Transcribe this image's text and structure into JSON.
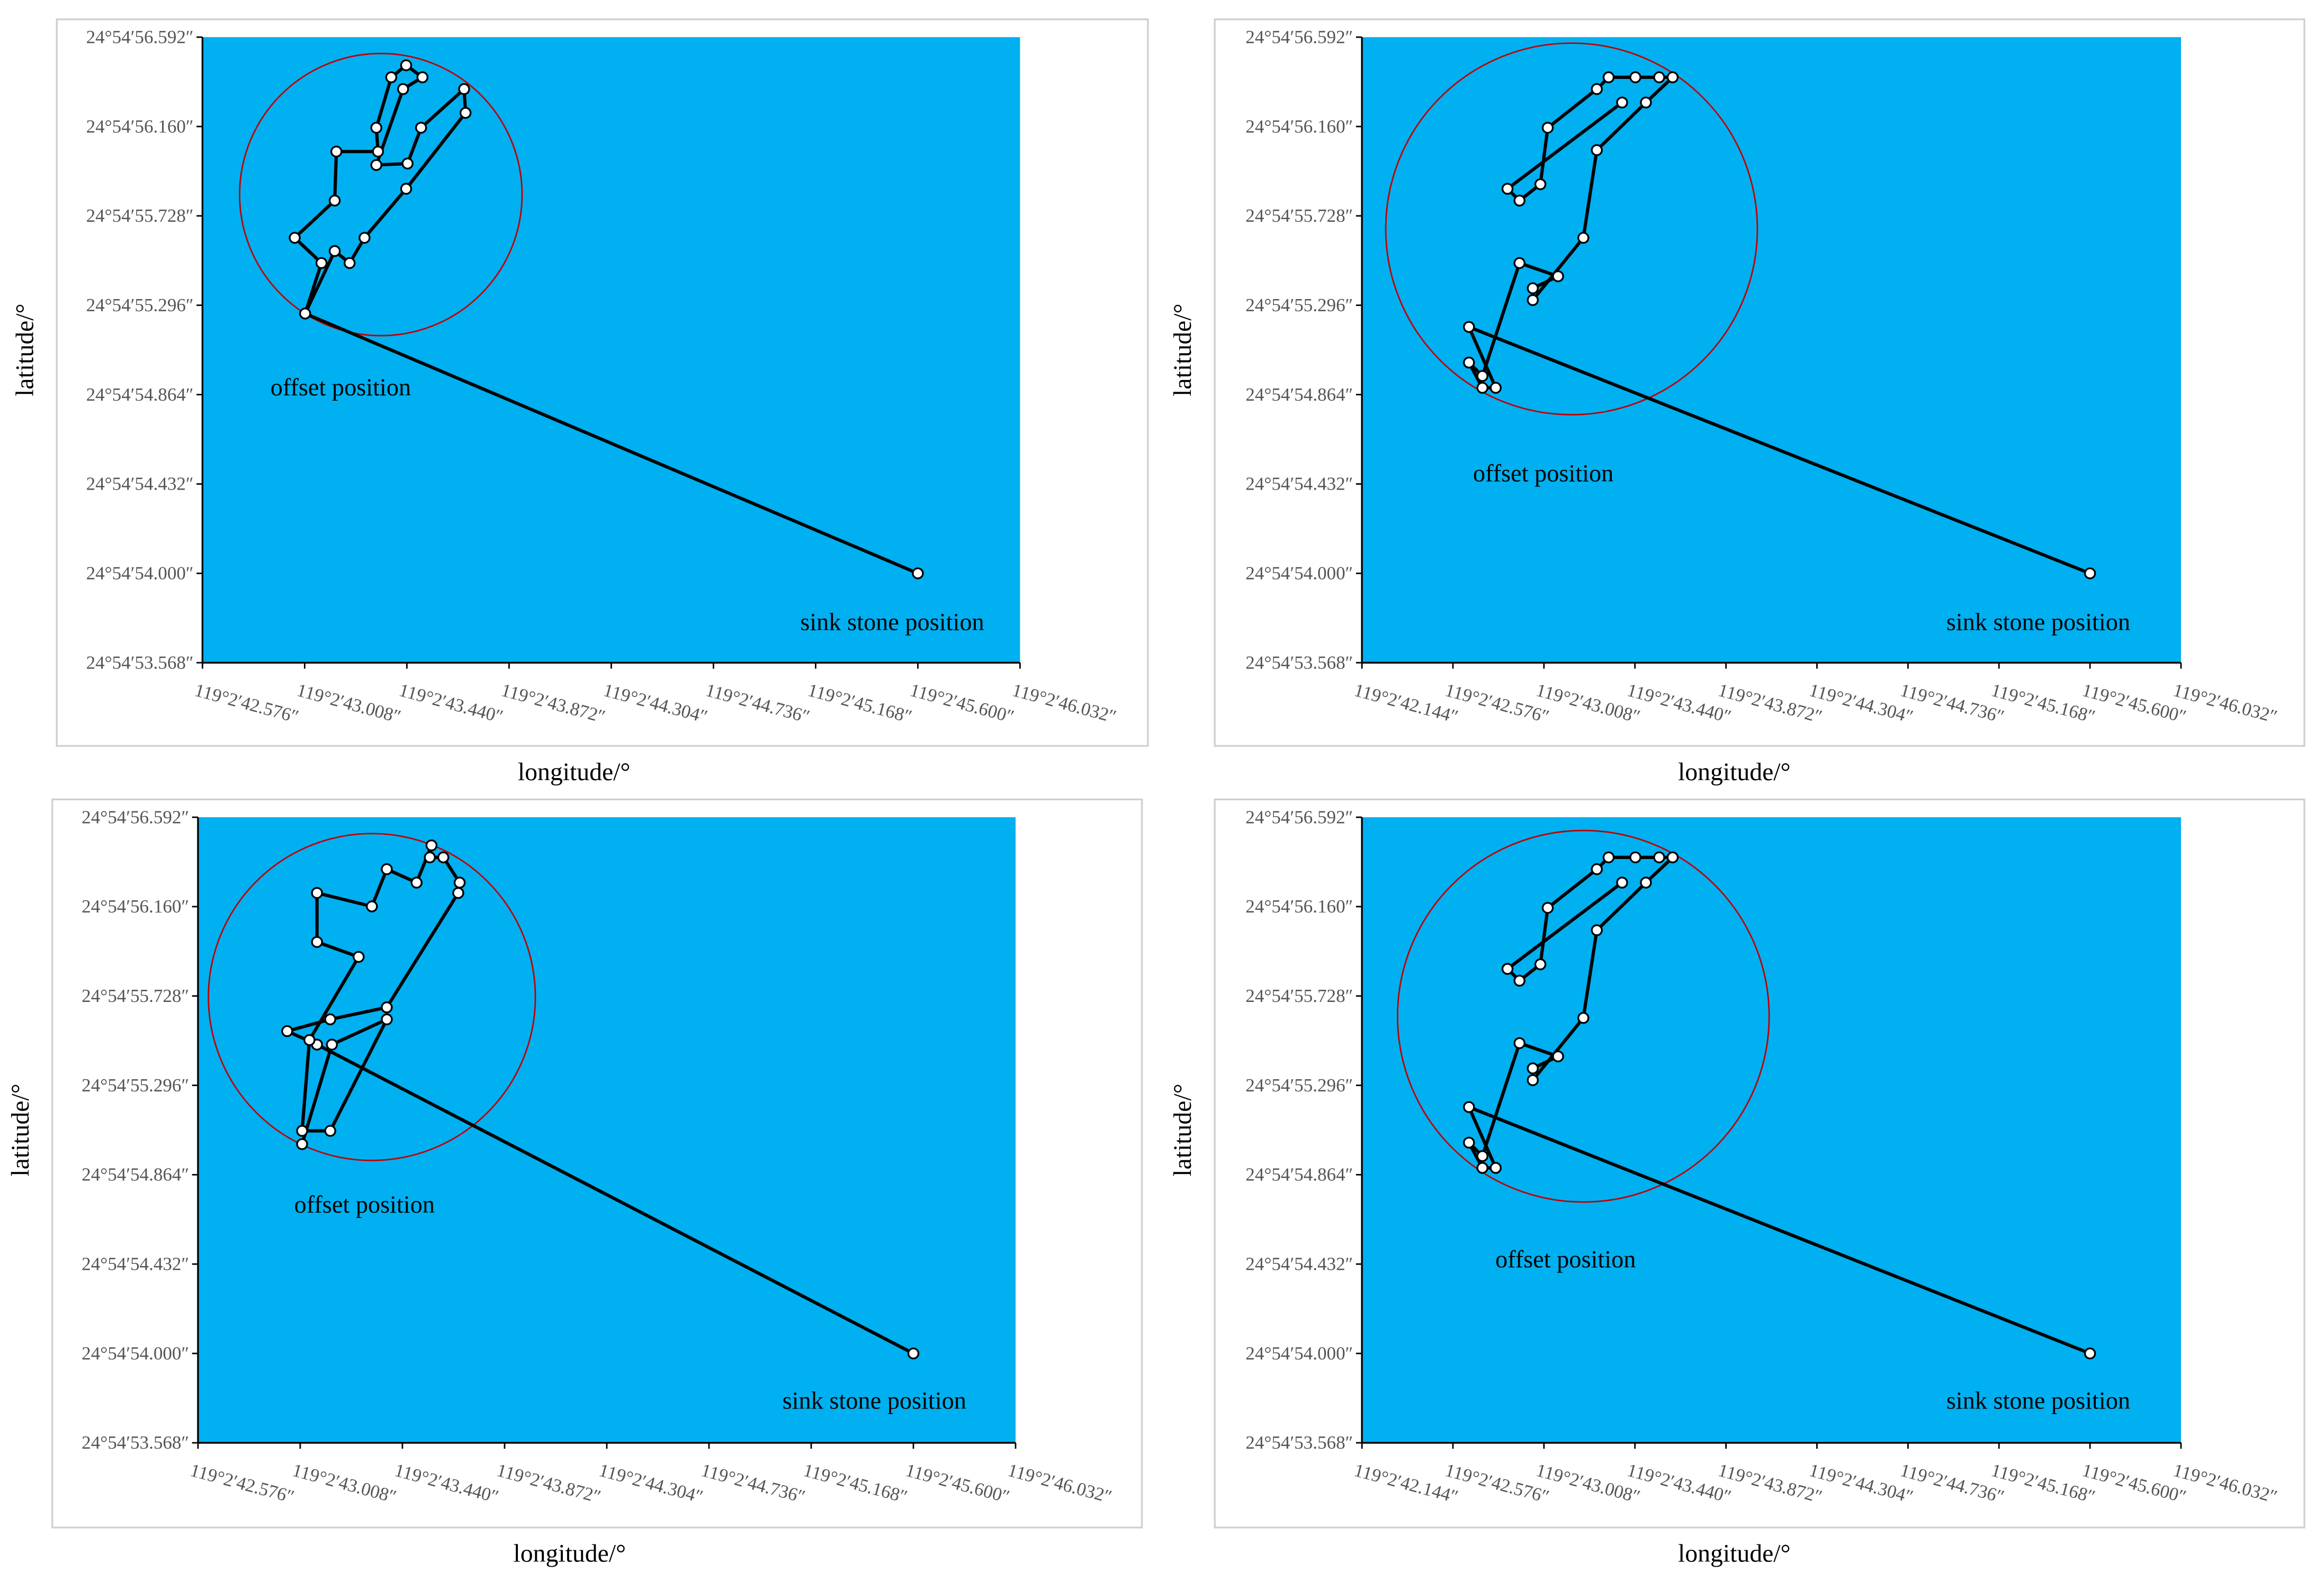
{
  "chart_data": [
    {
      "type": "line",
      "xlabel": "longitude/°",
      "ylabel": "latitude/°",
      "background": "#00b0f0",
      "xlim": [
        42.576,
        46.032
      ],
      "ylim": [
        53.568,
        56.592
      ],
      "xticks": [
        {
          "value": 42.576,
          "label": "119°2′42.576″"
        },
        {
          "value": 43.008,
          "label": "119°2′43.008″"
        },
        {
          "value": 43.44,
          "label": "119°2′43.440″"
        },
        {
          "value": 43.872,
          "label": "119°2′43.872″"
        },
        {
          "value": 44.304,
          "label": "119°2′44.304″"
        },
        {
          "value": 44.736,
          "label": "119°2′44.736″"
        },
        {
          "value": 45.168,
          "label": "119°2′45.168″"
        },
        {
          "value": 45.6,
          "label": "119°2′45.600″"
        },
        {
          "value": 46.032,
          "label": "119°2′46.032″"
        }
      ],
      "yticks": [
        {
          "value": 53.568,
          "label": "24°54′53.568″"
        },
        {
          "value": 54.0,
          "label": "24°54′54.000″"
        },
        {
          "value": 54.432,
          "label": "24°54′54.432″"
        },
        {
          "value": 54.864,
          "label": "24°54′54.864″"
        },
        {
          "value": 55.296,
          "label": "24°54′55.296″"
        },
        {
          "value": 55.728,
          "label": "24°54′55.728″"
        },
        {
          "value": 56.16,
          "label": "24°54′56.160″"
        },
        {
          "value": 56.592,
          "label": "24°54′56.592″"
        }
      ],
      "series": [
        {
          "color": "#000000",
          "x": [
            45.6,
            43.01,
            43.079,
            42.966,
            43.135,
            43.142,
            43.318,
            43.311,
            43.374,
            43.437,
            43.506,
            43.424,
            43.311,
            43.443,
            43.5,
            43.682,
            43.688,
            43.437,
            43.261,
            43.198,
            43.135,
            43.01
          ],
          "values": [
            54.0,
            55.256,
            55.5,
            55.622,
            55.802,
            56.039,
            56.039,
            56.154,
            56.398,
            56.456,
            56.398,
            56.341,
            55.974,
            55.981,
            56.154,
            56.341,
            56.226,
            55.859,
            55.622,
            55.5,
            55.558,
            55.256
          ]
        }
      ],
      "circle": {
        "x": 43.33,
        "y": 55.831,
        "rx": 0.597,
        "ry": 0.682,
        "color": "#c00000"
      },
      "annotations": [
        "offset position",
        "sink stone position"
      ]
    },
    {
      "type": "line",
      "xlabel": "longitude/°",
      "ylabel": "latitude/°",
      "background": "#00b0f0",
      "xlim": [
        42.144,
        46.032
      ],
      "ylim": [
        53.568,
        56.592
      ],
      "xticks": [
        {
          "value": 42.144,
          "label": "119°2′42.144″"
        },
        {
          "value": 42.576,
          "label": "119°2′42.576″"
        },
        {
          "value": 43.008,
          "label": "119°2′43.008″"
        },
        {
          "value": 43.44,
          "label": "119°2′43.440″"
        },
        {
          "value": 43.872,
          "label": "119°2′43.872″"
        },
        {
          "value": 44.304,
          "label": "119°2′44.304″"
        },
        {
          "value": 44.736,
          "label": "119°2′44.736″"
        },
        {
          "value": 45.168,
          "label": "119°2′45.168″"
        },
        {
          "value": 45.6,
          "label": "119°2′45.600″"
        },
        {
          "value": 46.032,
          "label": "119°2′46.032″"
        }
      ],
      "yticks": [
        {
          "value": 53.568,
          "label": "24°54′53.568″"
        },
        {
          "value": 54.0,
          "label": "24°54′54.000″"
        },
        {
          "value": 54.432,
          "label": "24°54′54.432″"
        },
        {
          "value": 54.864,
          "label": "24°54′54.864″"
        },
        {
          "value": 55.296,
          "label": "24°54′55.296″"
        },
        {
          "value": 55.728,
          "label": "24°54′55.728″"
        },
        {
          "value": 56.16,
          "label": "24°54′56.160″"
        },
        {
          "value": 56.592,
          "label": "24°54′56.592″"
        }
      ],
      "series": [
        {
          "color": "#000000",
          "x": [
            45.6,
            42.652,
            42.779,
            42.716,
            42.652,
            42.716,
            42.892,
            43.075,
            42.955,
            42.955,
            43.195,
            43.259,
            43.492,
            43.619,
            43.555,
            43.442,
            43.315,
            43.259,
            43.026,
            42.991,
            42.892,
            42.835,
            43.379
          ],
          "values": [
            54.0,
            55.191,
            54.897,
            54.897,
            55.019,
            54.954,
            55.5,
            55.436,
            55.378,
            55.321,
            55.622,
            56.046,
            56.276,
            56.398,
            56.398,
            56.398,
            56.398,
            56.341,
            56.154,
            55.881,
            55.802,
            55.859,
            56.276
          ]
        }
      ],
      "circle": {
        "x": 43.139,
        "y": 55.665,
        "rx": 0.882,
        "ry": 0.898,
        "color": "#c00000"
      },
      "annotations": [
        "offset position",
        "sink stone position"
      ]
    },
    {
      "type": "line",
      "xlabel": "longitude/°",
      "ylabel": "latitude/°",
      "background": "#00b0f0",
      "xlim": [
        42.576,
        46.032
      ],
      "ylim": [
        53.568,
        56.592
      ],
      "xticks": [
        {
          "value": 42.576,
          "label": "119°2′42.576″"
        },
        {
          "value": 43.008,
          "label": "119°2′43.008″"
        },
        {
          "value": 43.44,
          "label": "119°2′43.440″"
        },
        {
          "value": 43.872,
          "label": "119°2′43.872″"
        },
        {
          "value": 44.304,
          "label": "119°2′44.304″"
        },
        {
          "value": 44.736,
          "label": "119°2′44.736″"
        },
        {
          "value": 45.168,
          "label": "119°2′45.168″"
        },
        {
          "value": 45.6,
          "label": "119°2′45.600″"
        },
        {
          "value": 46.032,
          "label": "119°2′46.032″"
        }
      ],
      "yticks": [
        {
          "value": 53.568,
          "label": "24°54′53.568″"
        },
        {
          "value": 54.0,
          "label": "24°54′54.000″"
        },
        {
          "value": 54.432,
          "label": "24°54′54.432″"
        },
        {
          "value": 54.864,
          "label": "24°54′54.864″"
        },
        {
          "value": 55.296,
          "label": "24°54′55.296″"
        },
        {
          "value": 55.728,
          "label": "24°54′55.728″"
        },
        {
          "value": 56.16,
          "label": "24°54′56.160″"
        },
        {
          "value": 56.592,
          "label": "24°54′56.592″"
        }
      ],
      "series": [
        {
          "color": "#000000",
          "x": [
            45.6,
            43.079,
            42.953,
            43.135,
            43.374,
            43.676,
            43.682,
            43.613,
            43.556,
            43.563,
            43.5,
            43.374,
            43.311,
            43.079,
            43.079,
            43.255,
            43.047,
            43.016,
            43.135,
            43.374,
            43.142,
            43.016
          ],
          "values": [
            54.0,
            55.493,
            55.558,
            55.615,
            55.673,
            56.226,
            56.276,
            56.398,
            56.398,
            56.456,
            56.276,
            56.341,
            56.161,
            56.226,
            55.989,
            55.917,
            55.515,
            55.076,
            55.076,
            55.615,
            55.493,
            55.012
          ]
        }
      ],
      "circle": {
        "x": 43.311,
        "y": 55.723,
        "rx": 0.691,
        "ry": 0.79,
        "color": "#c00000"
      },
      "annotations": [
        "offset position",
        "sink stone position"
      ]
    },
    {
      "type": "line",
      "xlabel": "longitude/°",
      "ylabel": "latitude/°",
      "background": "#00b0f0",
      "xlim": [
        42.144,
        46.032
      ],
      "ylim": [
        53.568,
        56.592
      ],
      "xticks": [
        {
          "value": 42.144,
          "label": "119°2′42.144″"
        },
        {
          "value": 42.576,
          "label": "119°2′42.576″"
        },
        {
          "value": 43.008,
          "label": "119°2′43.008″"
        },
        {
          "value": 43.44,
          "label": "119°2′43.440″"
        },
        {
          "value": 43.872,
          "label": "119°2′43.872″"
        },
        {
          "value": 44.304,
          "label": "119°2′44.304″"
        },
        {
          "value": 44.736,
          "label": "119°2′44.736″"
        },
        {
          "value": 45.168,
          "label": "119°2′45.168″"
        },
        {
          "value": 45.6,
          "label": "119°2′45.600″"
        },
        {
          "value": 46.032,
          "label": "119°2′46.032″"
        }
      ],
      "yticks": [
        {
          "value": 53.568,
          "label": "24°54′53.568″"
        },
        {
          "value": 54.0,
          "label": "24°54′54.000″"
        },
        {
          "value": 54.432,
          "label": "24°54′54.432″"
        },
        {
          "value": 54.864,
          "label": "24°54′54.864″"
        },
        {
          "value": 55.296,
          "label": "24°54′55.296″"
        },
        {
          "value": 55.728,
          "label": "24°54′55.728″"
        },
        {
          "value": 56.16,
          "label": "24°54′56.160″"
        },
        {
          "value": 56.592,
          "label": "24°54′56.592″"
        }
      ],
      "series": [
        {
          "color": "#000000",
          "x": [
            45.6,
            42.652,
            42.779,
            42.716,
            42.652,
            42.716,
            42.892,
            43.075,
            42.955,
            42.955,
            43.195,
            43.259,
            43.492,
            43.619,
            43.555,
            43.442,
            43.315,
            43.259,
            43.026,
            42.991,
            42.892,
            42.835,
            43.379
          ],
          "values": [
            54.0,
            55.191,
            54.897,
            54.897,
            55.019,
            54.954,
            55.5,
            55.436,
            55.378,
            55.321,
            55.622,
            56.046,
            56.276,
            56.398,
            56.398,
            56.398,
            56.398,
            56.341,
            56.154,
            55.881,
            55.802,
            55.859,
            56.276
          ]
        }
      ],
      "circle": {
        "x": 43.195,
        "y": 55.63,
        "rx": 0.882,
        "ry": 0.898,
        "color": "#c00000"
      },
      "annotations": [
        "offset position",
        "sink stone position"
      ]
    }
  ]
}
